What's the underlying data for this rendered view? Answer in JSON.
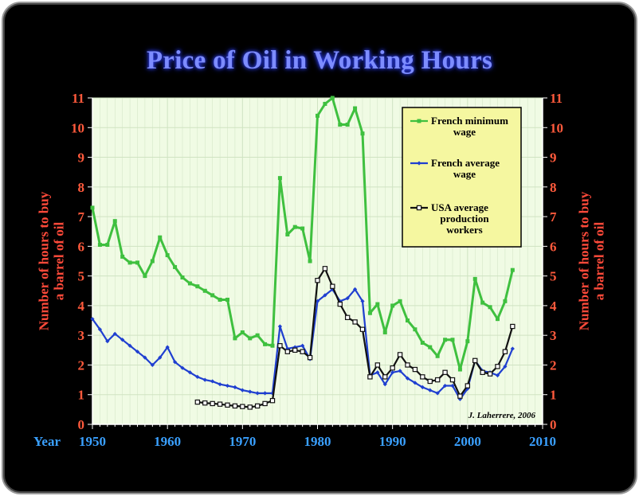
{
  "chart_data": {
    "type": "line",
    "title": "Price of Oil in Working Hours",
    "ylabel": "Number of hours to buy a barrel of oil",
    "ylabel_lines": [
      "Number of hours to buy",
      "a barrel of oil"
    ],
    "xlabel": "Year",
    "xlim": [
      1950,
      2010
    ],
    "ylim": [
      0,
      11
    ],
    "x_ticks": [
      1950,
      1960,
      1970,
      1980,
      1990,
      2000,
      2010
    ],
    "y_ticks": [
      0,
      1,
      2,
      3,
      4,
      5,
      6,
      7,
      8,
      9,
      10,
      11
    ],
    "grid": true,
    "legend_position": "top-right",
    "credit": "J. Laherrere, 2006",
    "colors": {
      "plot_bg": "#f0fbe4",
      "grid": "#cfe3c2",
      "legend_bg": "#f5f7a0"
    },
    "series": [
      {
        "name": "French minimum wage",
        "legend_lines": [
          "French minimum",
          "wage"
        ],
        "color": "#3fc03f",
        "marker": "square-filled",
        "points": [
          [
            1950,
            7.3
          ],
          [
            1951,
            6.05
          ],
          [
            1952,
            6.05
          ],
          [
            1953,
            6.85
          ],
          [
            1954,
            5.65
          ],
          [
            1955,
            5.45
          ],
          [
            1956,
            5.45
          ],
          [
            1957,
            5.0
          ],
          [
            1958,
            5.5
          ],
          [
            1959,
            6.3
          ],
          [
            1960,
            5.7
          ],
          [
            1961,
            5.3
          ],
          [
            1962,
            4.95
          ],
          [
            1963,
            4.75
          ],
          [
            1964,
            4.65
          ],
          [
            1965,
            4.5
          ],
          [
            1966,
            4.35
          ],
          [
            1967,
            4.2
          ],
          [
            1968,
            4.2
          ],
          [
            1969,
            2.9
          ],
          [
            1970,
            3.1
          ],
          [
            1971,
            2.9
          ],
          [
            1972,
            3.0
          ],
          [
            1973,
            2.7
          ],
          [
            1974,
            2.65
          ],
          [
            1975,
            8.3
          ],
          [
            1976,
            6.4
          ],
          [
            1977,
            6.65
          ],
          [
            1978,
            6.6
          ],
          [
            1979,
            5.5
          ],
          [
            1980,
            10.4
          ],
          [
            1981,
            10.8
          ],
          [
            1982,
            11.0
          ],
          [
            1983,
            10.1
          ],
          [
            1984,
            10.1
          ],
          [
            1985,
            10.65
          ],
          [
            1986,
            9.8
          ],
          [
            1987,
            3.75
          ],
          [
            1988,
            4.05
          ],
          [
            1989,
            3.1
          ],
          [
            1990,
            4.0
          ],
          [
            1991,
            4.15
          ],
          [
            1992,
            3.5
          ],
          [
            1993,
            3.2
          ],
          [
            1994,
            2.75
          ],
          [
            1995,
            2.6
          ],
          [
            1996,
            2.3
          ],
          [
            1997,
            2.85
          ],
          [
            1998,
            2.85
          ],
          [
            1999,
            1.85
          ],
          [
            2000,
            2.8
          ],
          [
            2001,
            4.9
          ],
          [
            2002,
            4.1
          ],
          [
            2003,
            3.95
          ],
          [
            2004,
            3.55
          ],
          [
            2005,
            4.15
          ],
          [
            2006,
            5.2
          ]
        ]
      },
      {
        "name": "French average wage",
        "legend_lines": [
          "French average",
          "wage"
        ],
        "color": "#1f3fd0",
        "marker": "diamond-filled",
        "points": [
          [
            1950,
            3.55
          ],
          [
            1951,
            3.2
          ],
          [
            1952,
            2.8
          ],
          [
            1953,
            3.05
          ],
          [
            1954,
            2.85
          ],
          [
            1955,
            2.65
          ],
          [
            1956,
            2.45
          ],
          [
            1957,
            2.25
          ],
          [
            1958,
            2.0
          ],
          [
            1959,
            2.25
          ],
          [
            1960,
            2.6
          ],
          [
            1961,
            2.1
          ],
          [
            1962,
            1.9
          ],
          [
            1963,
            1.75
          ],
          [
            1964,
            1.6
          ],
          [
            1965,
            1.5
          ],
          [
            1966,
            1.45
          ],
          [
            1967,
            1.35
          ],
          [
            1968,
            1.3
          ],
          [
            1969,
            1.25
          ],
          [
            1970,
            1.15
          ],
          [
            1971,
            1.1
          ],
          [
            1972,
            1.05
          ],
          [
            1973,
            1.05
          ],
          [
            1974,
            1.05
          ],
          [
            1975,
            3.3
          ],
          [
            1976,
            2.55
          ],
          [
            1977,
            2.6
          ],
          [
            1978,
            2.65
          ],
          [
            1979,
            2.2
          ],
          [
            1980,
            4.15
          ],
          [
            1981,
            4.35
          ],
          [
            1982,
            4.55
          ],
          [
            1983,
            4.15
          ],
          [
            1984,
            4.25
          ],
          [
            1985,
            4.55
          ],
          [
            1986,
            4.15
          ],
          [
            1987,
            1.65
          ],
          [
            1988,
            1.75
          ],
          [
            1989,
            1.35
          ],
          [
            1990,
            1.75
          ],
          [
            1991,
            1.8
          ],
          [
            1992,
            1.55
          ],
          [
            1993,
            1.4
          ],
          [
            1994,
            1.25
          ],
          [
            1995,
            1.15
          ],
          [
            1996,
            1.05
          ],
          [
            1997,
            1.3
          ],
          [
            1998,
            1.3
          ],
          [
            1999,
            0.85
          ],
          [
            2000,
            1.2
          ],
          [
            2001,
            2.15
          ],
          [
            2002,
            1.8
          ],
          [
            2003,
            1.75
          ],
          [
            2004,
            1.65
          ],
          [
            2005,
            1.95
          ],
          [
            2006,
            2.55
          ]
        ]
      },
      {
        "name": "USA average production workers",
        "legend_lines": [
          "USA average",
          "production",
          "workers"
        ],
        "color": "#111111",
        "marker": "square-open",
        "points": [
          [
            1964,
            0.75
          ],
          [
            1965,
            0.72
          ],
          [
            1966,
            0.7
          ],
          [
            1967,
            0.68
          ],
          [
            1968,
            0.65
          ],
          [
            1969,
            0.62
          ],
          [
            1970,
            0.6
          ],
          [
            1971,
            0.58
          ],
          [
            1972,
            0.62
          ],
          [
            1973,
            0.7
          ],
          [
            1974,
            0.8
          ],
          [
            1975,
            2.65
          ],
          [
            1976,
            2.45
          ],
          [
            1977,
            2.5
          ],
          [
            1978,
            2.45
          ],
          [
            1979,
            2.25
          ],
          [
            1980,
            4.85
          ],
          [
            1981,
            5.25
          ],
          [
            1982,
            4.65
          ],
          [
            1983,
            4.05
          ],
          [
            1984,
            3.6
          ],
          [
            1985,
            3.45
          ],
          [
            1986,
            3.2
          ],
          [
            1987,
            1.6
          ],
          [
            1988,
            2.0
          ],
          [
            1989,
            1.6
          ],
          [
            1990,
            1.9
          ],
          [
            1991,
            2.35
          ],
          [
            1992,
            2.0
          ],
          [
            1993,
            1.85
          ],
          [
            1994,
            1.6
          ],
          [
            1995,
            1.45
          ],
          [
            1996,
            1.5
          ],
          [
            1997,
            1.75
          ],
          [
            1998,
            1.5
          ],
          [
            1999,
            0.95
          ],
          [
            2000,
            1.3
          ],
          [
            2001,
            2.15
          ],
          [
            2002,
            1.75
          ],
          [
            2003,
            1.7
          ],
          [
            2004,
            1.95
          ],
          [
            2005,
            2.45
          ],
          [
            2006,
            3.3
          ]
        ]
      }
    ]
  }
}
